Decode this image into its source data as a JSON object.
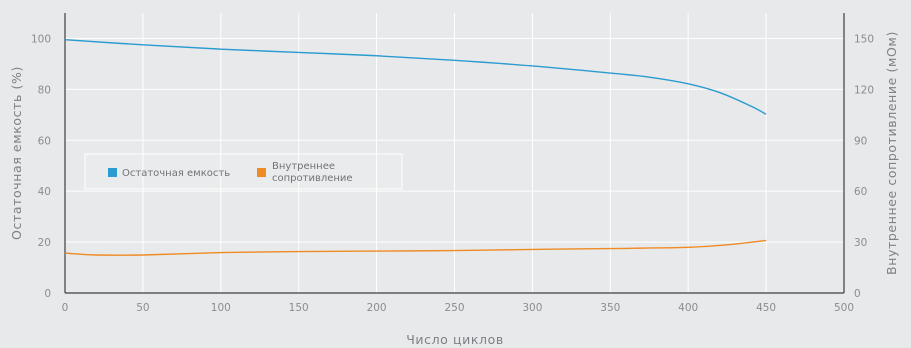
{
  "chart_data": {
    "type": "line",
    "xlabel": "Число циклов",
    "ylabel": "Остаточная емкость (%)",
    "y2label": "Внутреннее сопротивление (мОм)",
    "xlim": [
      0,
      500
    ],
    "ylim": [
      0,
      110
    ],
    "y2lim": [
      0,
      165
    ],
    "x_ticks": [
      "0",
      "50",
      "100",
      "150",
      "200",
      "250",
      "300",
      "350",
      "400",
      "450",
      "500"
    ],
    "y_ticks": [
      "0",
      "20",
      "40",
      "60",
      "80",
      "100"
    ],
    "y2_ticks": [
      "0",
      "30",
      "60",
      "90",
      "120",
      "150"
    ],
    "grid": true,
    "legend_position": "center-left",
    "series": [
      {
        "name": "Остаточная емкость",
        "axis": "left",
        "color": "#2b9bd0",
        "x": [
          0,
          50,
          100,
          150,
          200,
          250,
          300,
          350,
          375,
          400,
          420,
          440,
          450
        ],
        "y": [
          99.5,
          97.5,
          95.8,
          94.5,
          93.2,
          91.4,
          89.2,
          86.4,
          84.8,
          82.2,
          78.8,
          73.5,
          70.2
        ]
      },
      {
        "name": "Внутреннее сопротивление",
        "legend_lines": [
          "Внутреннее",
          "сопротивление"
        ],
        "axis": "right",
        "color": "#ef8b25",
        "x": [
          0,
          20,
          50,
          100,
          150,
          200,
          250,
          300,
          350,
          400,
          425,
          450
        ],
        "y": [
          23.5,
          22.4,
          22.4,
          23.8,
          24.4,
          24.7,
          25.0,
          25.7,
          26.2,
          26.9,
          28.4,
          31.0
        ]
      }
    ]
  }
}
